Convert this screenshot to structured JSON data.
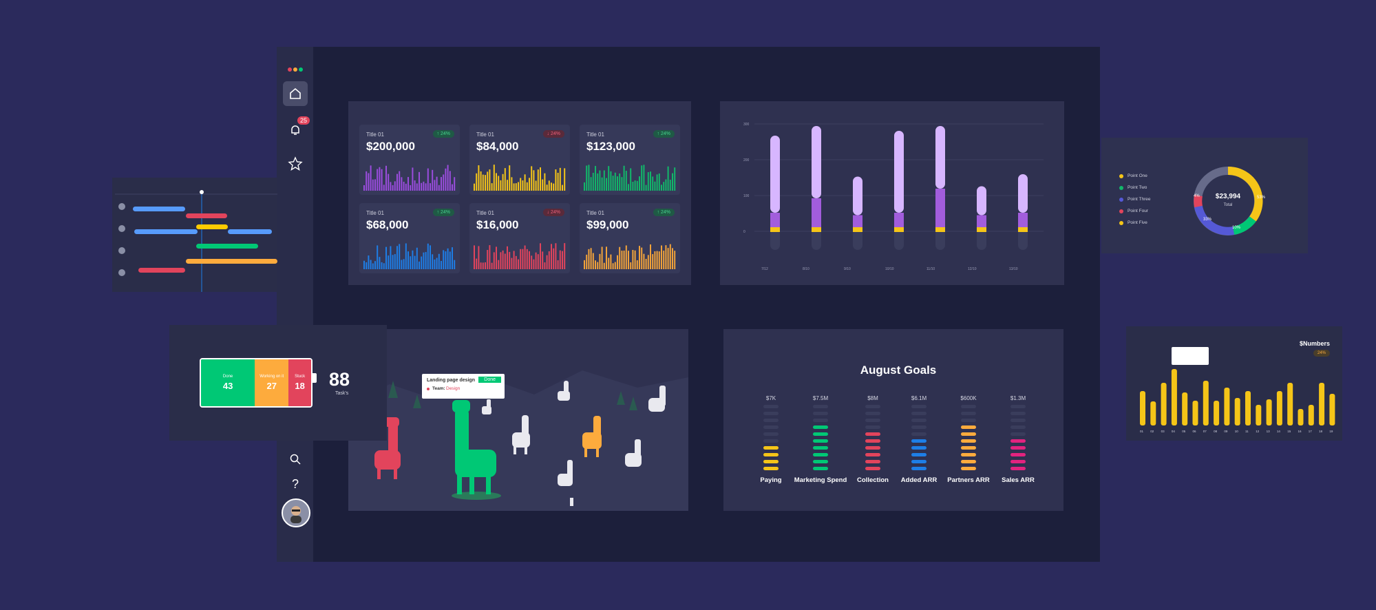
{
  "sidebar": {
    "notifications_badge": "25",
    "icons": [
      "logo-icon",
      "home-icon",
      "bell-icon",
      "star-icon",
      "search-icon",
      "help-icon"
    ]
  },
  "kpi_cards": [
    {
      "title": "Title 01",
      "value": "$200,000",
      "change": "24%",
      "direction": "up",
      "color": "#9b4dde"
    },
    {
      "title": "Title 01",
      "value": "$84,000",
      "change": "24%",
      "direction": "down",
      "color": "#f5c518"
    },
    {
      "title": "Title 01",
      "value": "$123,000",
      "change": "24%",
      "direction": "up",
      "color": "#12b76a"
    },
    {
      "title": "Title 01",
      "value": "$68,000",
      "change": "24%",
      "direction": "up",
      "color": "#1e7ee6"
    },
    {
      "title": "Title 01",
      "value": "$16,000",
      "change": "24%",
      "direction": "down",
      "color": "#e2445c"
    },
    {
      "title": "Title 01",
      "value": "$99,000",
      "change": "24%",
      "direction": "up",
      "color": "#f2a33a"
    }
  ],
  "stacked_chart": {
    "chart_data": {
      "type": "bar",
      "y_ticks": [
        "300",
        "200",
        "100",
        "0"
      ],
      "categories": [
        "7/12",
        "8/10",
        "9/10",
        "10/10",
        "11/10",
        "12/10",
        "13/10"
      ],
      "series": [
        {
          "values": [
            10,
            10,
            10,
            10,
            10,
            10,
            10
          ],
          "color": "#f5c518"
        },
        {
          "values": [
            30,
            60,
            25,
            30,
            80,
            25,
            30
          ],
          "color": "#a25ddc"
        },
        {
          "values": [
            160,
            150,
            80,
            170,
            130,
            60,
            80
          ],
          "color": "#d7b6ff"
        }
      ]
    }
  },
  "donut": {
    "center_value": "$23,994",
    "center_label": "Total",
    "legend": [
      {
        "label": "Point One",
        "color": "#f5c518"
      },
      {
        "label": "Point Two",
        "color": "#12b76a"
      },
      {
        "label": "Point Three",
        "color": "#5559d6"
      },
      {
        "label": "Point Four",
        "color": "#e2445c"
      },
      {
        "label": "Point Five",
        "color": "#f5c518"
      }
    ],
    "segment_labels": [
      "4%",
      "33%",
      "10%",
      "53%"
    ]
  },
  "status_widget": {
    "segments": [
      {
        "label": "Done",
        "value": "43",
        "color": "#00c875"
      },
      {
        "label": "Working on it",
        "value": "27",
        "color": "#fdab3d"
      },
      {
        "label": "Stuck",
        "value": "18",
        "color": "#e2445c"
      }
    ],
    "total": "88",
    "total_label": "Task's"
  },
  "llama_panel": {
    "tooltip_title": "Landing page design",
    "tooltip_status": "Done",
    "tooltip_team_label": "Team:",
    "tooltip_team_value": "Design"
  },
  "goals": {
    "title": "August Goals",
    "columns": [
      {
        "amount": "$7K",
        "label": "Paying",
        "color": "#f5c518",
        "filled": 4
      },
      {
        "amount": "$7.5M",
        "label": "Marketing Spend",
        "color": "#00c875",
        "filled": 7
      },
      {
        "amount": "$8M",
        "label": "Collection",
        "color": "#e2445c",
        "filled": 6
      },
      {
        "amount": "$6.1M",
        "label": "Added ARR",
        "color": "#1e7ee6",
        "filled": 5
      },
      {
        "amount": "$600K",
        "label": "Partners ARR",
        "color": "#fdab3d",
        "filled": 7
      },
      {
        "amount": "$1.3M",
        "label": "Sales ARR",
        "color": "#e2237f",
        "filled": 5
      }
    ]
  },
  "numbers_chart": {
    "title": "$Numbers",
    "badge": "24%",
    "categories": [
      "01",
      "02",
      "03",
      "04",
      "05",
      "06",
      "07",
      "08",
      "09",
      "10",
      "11",
      "12",
      "13",
      "14",
      "15",
      "16",
      "17",
      "18",
      "19"
    ],
    "values": [
      50,
      35,
      62,
      82,
      48,
      36,
      65,
      36,
      55,
      40,
      50,
      30,
      38,
      50,
      62,
      24,
      30,
      62,
      46
    ]
  }
}
